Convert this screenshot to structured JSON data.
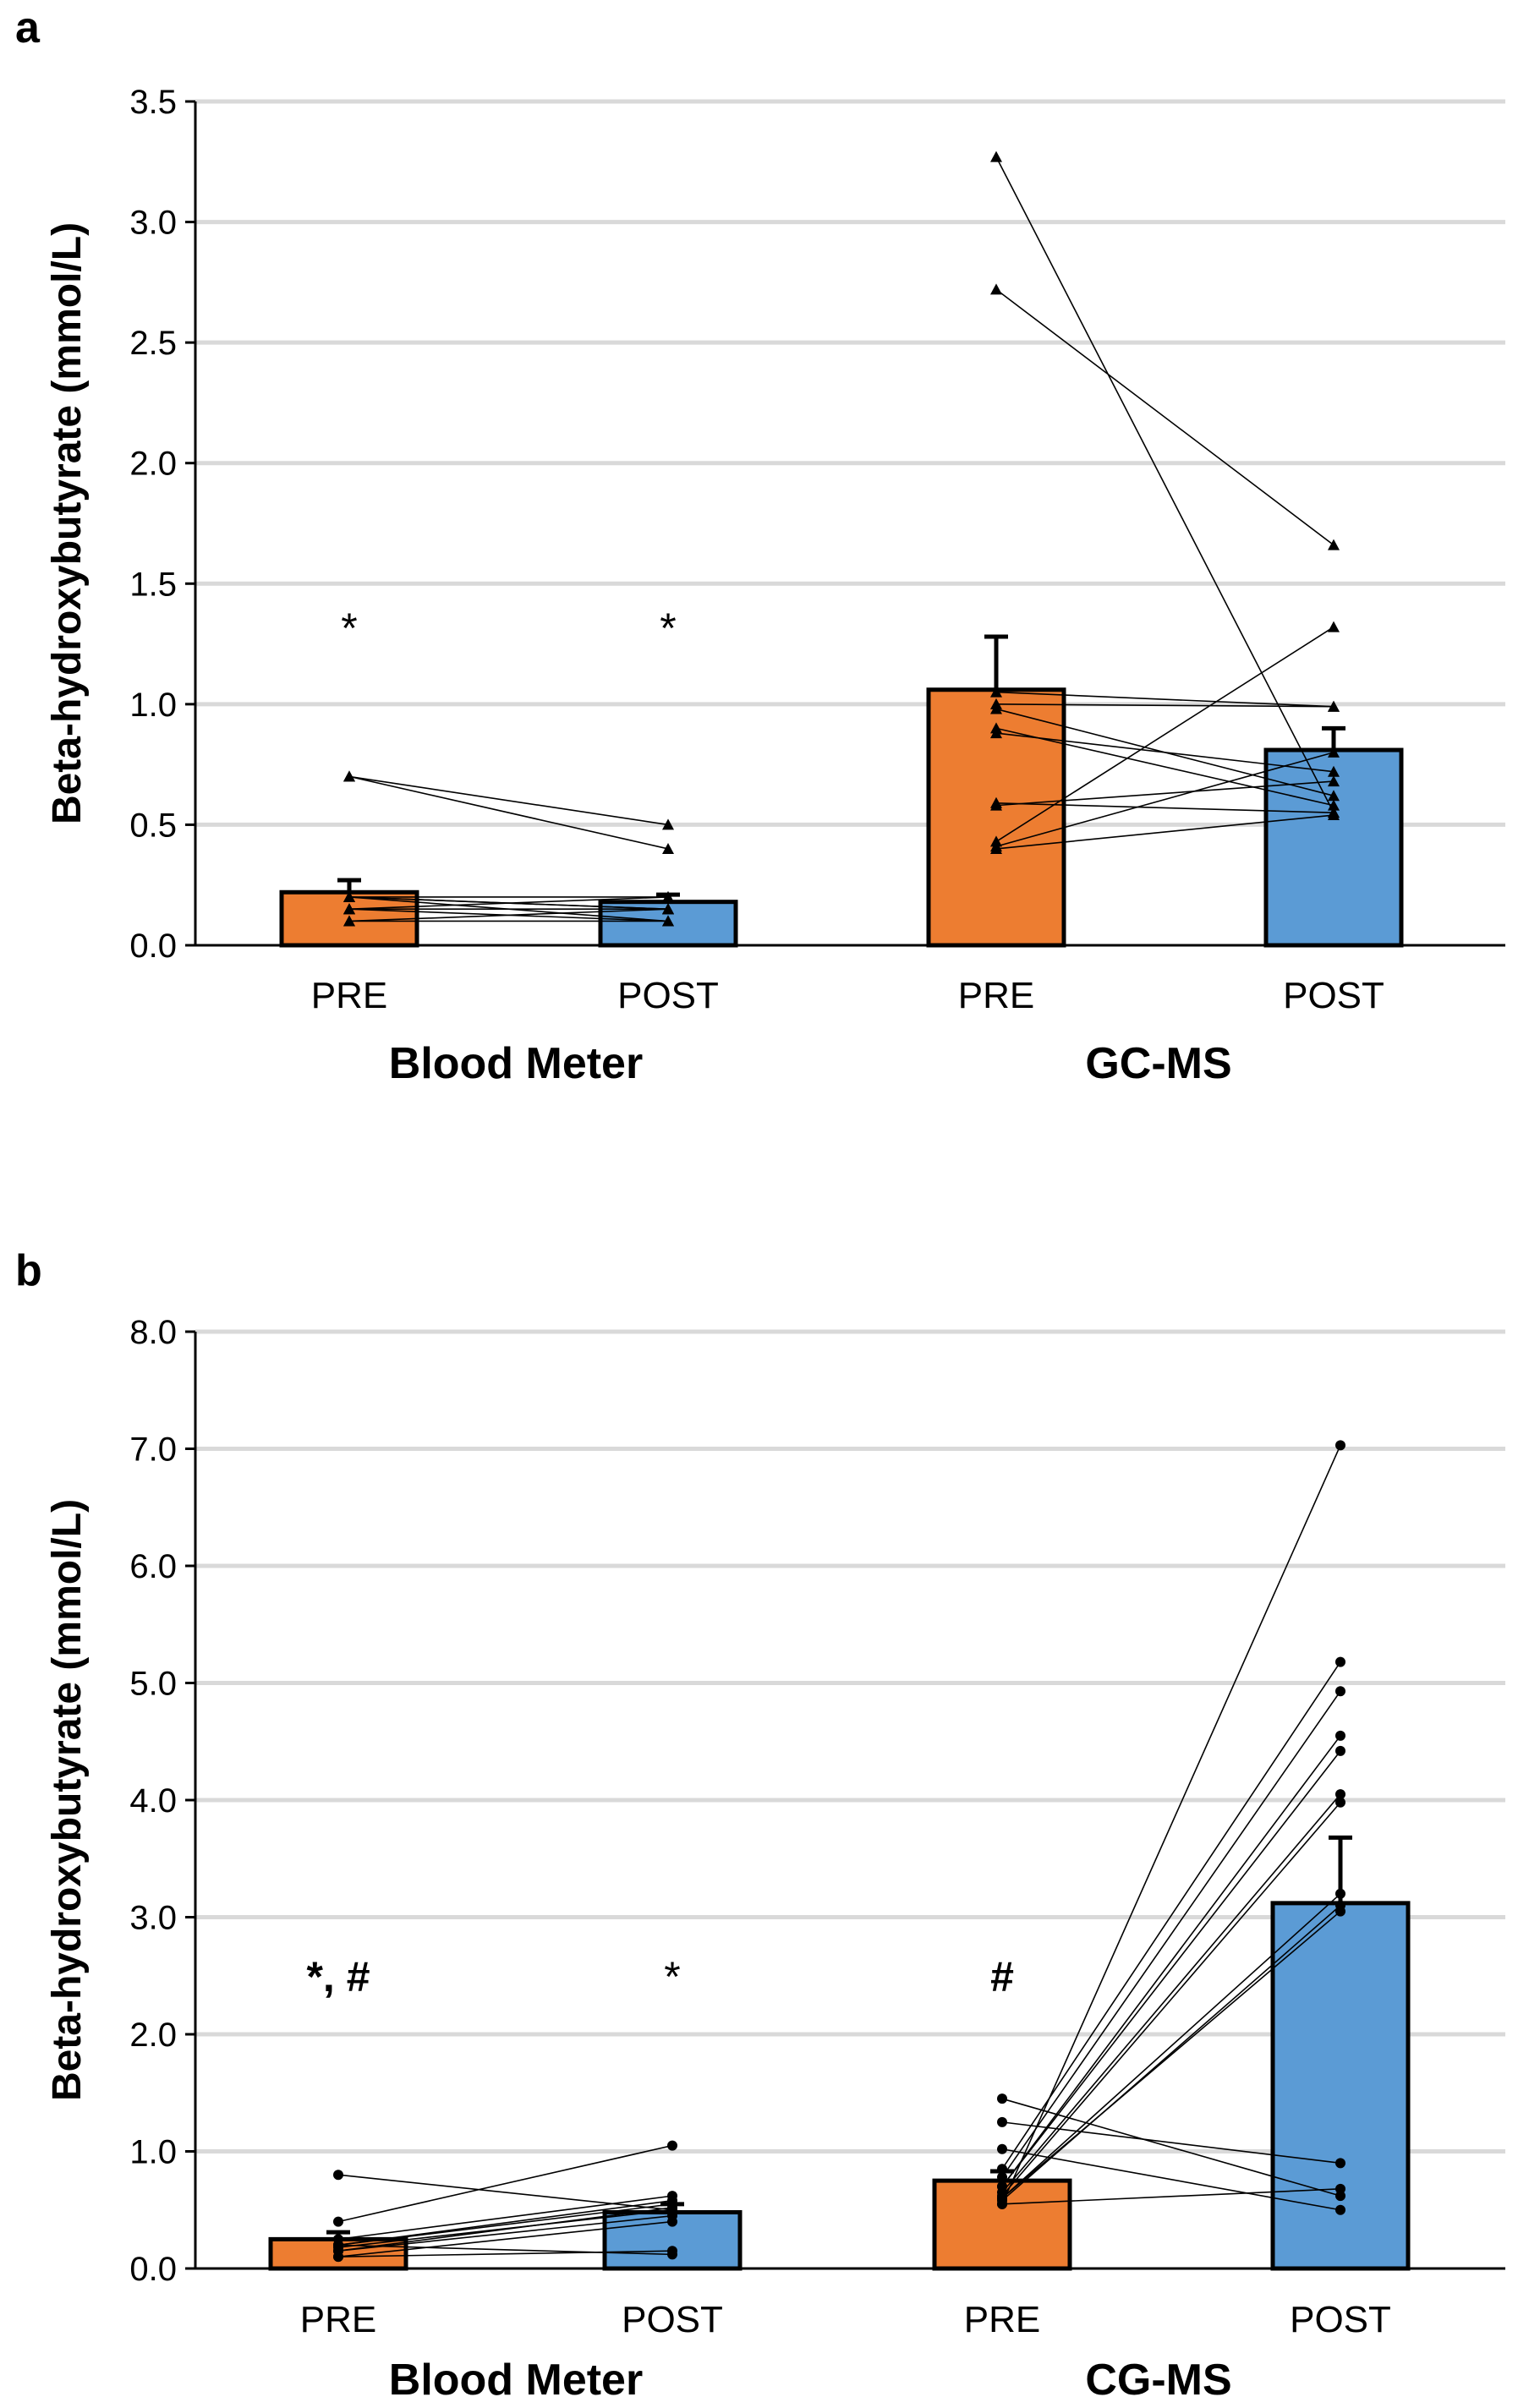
{
  "chart_data": [
    {
      "panel": "a",
      "type": "bar",
      "ylabel": "Beta-hydroxybutyrate (mmol/L)",
      "ylim": [
        0,
        3.5
      ],
      "yticks": [
        "0.0",
        "0.5",
        "1.0",
        "1.5",
        "2.0",
        "2.5",
        "3.0",
        "3.5"
      ],
      "ytick_values": [
        0,
        0.5,
        1.0,
        1.5,
        2.0,
        2.5,
        3.0,
        3.5
      ],
      "marker": "triangle",
      "groups": [
        {
          "label": "Blood Meter",
          "categories": [
            "PRE",
            "POST"
          ],
          "means": [
            0.22,
            0.18
          ],
          "errors": [
            0.05,
            0.03
          ],
          "annotations": [
            "*",
            "*"
          ],
          "pairs": [
            [
              0.7,
              0.5
            ],
            [
              0.7,
              0.4
            ],
            [
              0.2,
              0.2
            ],
            [
              0.2,
              0.1
            ],
            [
              0.2,
              0.15
            ],
            [
              0.15,
              0.2
            ],
            [
              0.15,
              0.15
            ],
            [
              0.1,
              0.15
            ],
            [
              0.1,
              0.1
            ],
            [
              0.2,
              0.15
            ],
            [
              0.15,
              0.1
            ]
          ]
        },
        {
          "label": "GC-MS",
          "categories": [
            "PRE",
            "POST"
          ],
          "means": [
            1.06,
            0.81
          ],
          "errors": [
            0.22,
            0.09
          ],
          "annotations": [
            "",
            ""
          ],
          "pairs": [
            [
              3.27,
              0.55
            ],
            [
              2.72,
              1.66
            ],
            [
              1.05,
              0.99
            ],
            [
              1.0,
              0.99
            ],
            [
              0.98,
              0.62
            ],
            [
              0.9,
              0.58
            ],
            [
              0.88,
              0.72
            ],
            [
              0.59,
              0.55
            ],
            [
              0.58,
              0.68
            ],
            [
              0.43,
              1.32
            ],
            [
              0.41,
              0.8
            ],
            [
              0.4,
              0.54
            ]
          ]
        }
      ]
    },
    {
      "panel": "b",
      "type": "bar",
      "ylabel": "Beta-hydroxybutyrate (mmol/L)",
      "ylim": [
        0,
        8
      ],
      "yticks": [
        "0.0",
        "1.0",
        "2.0",
        "3.0",
        "4.0",
        "5.0",
        "6.0",
        "7.0",
        "8.0"
      ],
      "ytick_values": [
        0,
        1,
        2,
        3,
        4,
        5,
        6,
        7,
        8
      ],
      "marker": "circle",
      "groups": [
        {
          "label": "Blood Meter",
          "categories": [
            "PRE",
            "POST"
          ],
          "means": [
            0.25,
            0.48
          ],
          "errors": [
            0.06,
            0.07
          ],
          "annotations": [
            "*, #",
            "*"
          ],
          "pairs": [
            [
              0.8,
              0.5
            ],
            [
              0.4,
              1.05
            ],
            [
              0.25,
              0.62
            ],
            [
              0.2,
              0.58
            ],
            [
              0.2,
              0.55
            ],
            [
              0.15,
              0.52
            ],
            [
              0.15,
              0.45
            ],
            [
              0.1,
              0.4
            ],
            [
              0.1,
              0.15
            ],
            [
              0.2,
              0.12
            ],
            [
              0.18,
              0.5
            ]
          ]
        },
        {
          "label": "CG-MS",
          "categories": [
            "PRE",
            "POST"
          ],
          "means": [
            0.75,
            3.12
          ],
          "errors": [
            0.08,
            0.56
          ],
          "annotations": [
            "#",
            ""
          ],
          "pairs": [
            [
              1.45,
              0.62
            ],
            [
              1.25,
              0.9
            ],
            [
              1.02,
              0.5
            ],
            [
              0.85,
              5.18
            ],
            [
              0.78,
              4.93
            ],
            [
              0.7,
              4.55
            ],
            [
              0.7,
              4.42
            ],
            [
              0.65,
              4.05
            ],
            [
              0.62,
              3.98
            ],
            [
              0.6,
              3.2
            ],
            [
              0.58,
              3.1
            ],
            [
              0.55,
              0.68
            ],
            [
              0.55,
              7.03
            ],
            [
              0.6,
              3.05
            ]
          ]
        }
      ]
    }
  ]
}
